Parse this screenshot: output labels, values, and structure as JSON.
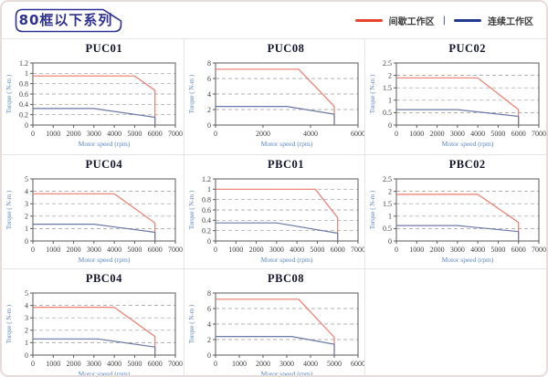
{
  "header": {
    "title": "80框以下系列"
  },
  "legend": {
    "intermittent_label": "间歇工作区",
    "separator": "|",
    "continuous_label": "连续工作区"
  },
  "colors": {
    "legend_intermittent": "#e8432c",
    "legend_continuous": "#1f3a8f",
    "line_intermittent": "#ee7b6d",
    "line_continuous": "#6b79a8",
    "axis_label": "#5b87c5",
    "tick_label": "#3f3f3f",
    "plot_border": "#5a5a5a",
    "gridline": "#999999",
    "title_text": "#15152e",
    "badge": "#2e3192",
    "card_border": "#e8dcda",
    "cell_border": "#e4e4ea"
  },
  "chart_data": [
    {
      "type": "line",
      "title": "PUC01",
      "xlabel": "Motor speed (rpm)",
      "ylabel": "Torque ( N-m )",
      "xlim": [
        0,
        7000
      ],
      "ylim": [
        0,
        1.2
      ],
      "xticks": [
        0,
        1000,
        2000,
        3000,
        4000,
        5000,
        6000,
        7000
      ],
      "yticks": [
        0,
        0.2,
        0.4,
        0.6,
        0.8,
        1,
        1.2
      ],
      "series": [
        {
          "name": "间歇工作区",
          "color": "intermittent",
          "points": [
            [
              0,
              0.95
            ],
            [
              5000,
              0.95
            ],
            [
              6000,
              0.67
            ],
            [
              6000,
              0
            ]
          ]
        },
        {
          "name": "连续工作区",
          "color": "continuous",
          "points": [
            [
              0,
              0.32
            ],
            [
              3000,
              0.32
            ],
            [
              6000,
              0.15
            ],
            [
              6000,
              0
            ]
          ]
        }
      ]
    },
    {
      "type": "line",
      "title": "PUC08",
      "xlabel": "Motor speed (rpm)",
      "ylabel": "Torque ( N-m )",
      "xlim": [
        0,
        6000
      ],
      "ylim": [
        0,
        8
      ],
      "xticks": [
        0,
        2000,
        4000,
        6000
      ],
      "yticks": [
        0,
        2,
        4,
        6,
        8
      ],
      "series": [
        {
          "name": "间歇工作区",
          "color": "intermittent",
          "points": [
            [
              0,
              7.2
            ],
            [
              3500,
              7.2
            ],
            [
              5000,
              2.4
            ],
            [
              5000,
              0
            ]
          ]
        },
        {
          "name": "连续工作区",
          "color": "continuous",
          "points": [
            [
              0,
              2.4
            ],
            [
              3000,
              2.4
            ],
            [
              5000,
              1.4
            ],
            [
              5000,
              0
            ]
          ]
        }
      ]
    },
    {
      "type": "line",
      "title": "PUC02",
      "xlabel": "Motor speed (rpm)",
      "ylabel": "Torque ( N-m )",
      "xlim": [
        0,
        7000
      ],
      "ylim": [
        0,
        2.5
      ],
      "xticks": [
        0,
        1000,
        2000,
        3000,
        4000,
        5000,
        6000,
        7000
      ],
      "yticks": [
        0,
        0.5,
        1,
        1.5,
        2,
        2.5
      ],
      "series": [
        {
          "name": "间歇工作区",
          "color": "intermittent",
          "points": [
            [
              0,
              1.9
            ],
            [
              4000,
              1.9
            ],
            [
              6000,
              0.62
            ],
            [
              6000,
              0
            ]
          ]
        },
        {
          "name": "连续工作区",
          "color": "continuous",
          "points": [
            [
              0,
              0.62
            ],
            [
              3000,
              0.62
            ],
            [
              6000,
              0.35
            ],
            [
              6000,
              0
            ]
          ]
        }
      ]
    },
    {
      "type": "line",
      "title": "PUC04",
      "xlabel": "Motor speed (rpm)",
      "ylabel": "Torque ( N-m )",
      "xlim": [
        0,
        7000
      ],
      "ylim": [
        0,
        5
      ],
      "xticks": [
        0,
        1000,
        2000,
        3000,
        4000,
        5000,
        6000,
        7000
      ],
      "yticks": [
        0,
        1,
        2,
        3,
        4,
        5
      ],
      "series": [
        {
          "name": "间歇工作区",
          "color": "intermittent",
          "points": [
            [
              0,
              3.8
            ],
            [
              4000,
              3.8
            ],
            [
              6000,
              1.45
            ],
            [
              6000,
              0
            ]
          ]
        },
        {
          "name": "连续工作区",
          "color": "continuous",
          "points": [
            [
              0,
              1.35
            ],
            [
              3000,
              1.35
            ],
            [
              6000,
              0.7
            ],
            [
              6000,
              0
            ]
          ]
        }
      ]
    },
    {
      "type": "line",
      "title": "PBC01",
      "xlabel": "Motor speed (rpm)",
      "ylabel": "Torque ( N-m )",
      "xlim": [
        0,
        7000
      ],
      "ylim": [
        0,
        1.2
      ],
      "xticks": [
        0,
        1000,
        2000,
        3000,
        4000,
        5000,
        6000,
        7000
      ],
      "yticks": [
        0,
        0.2,
        0.4,
        0.6,
        0.8,
        1,
        1.2
      ],
      "series": [
        {
          "name": "间歇工作区",
          "color": "intermittent",
          "points": [
            [
              0,
              1.0
            ],
            [
              4900,
              1.0
            ],
            [
              6000,
              0.45
            ],
            [
              6000,
              0
            ]
          ]
        },
        {
          "name": "连续工作区",
          "color": "continuous",
          "points": [
            [
              0,
              0.35
            ],
            [
              3000,
              0.35
            ],
            [
              6000,
              0.15
            ],
            [
              6000,
              0
            ]
          ]
        }
      ]
    },
    {
      "type": "line",
      "title": "PBC02",
      "xlabel": "Motor speed (rpm)",
      "ylabel": "Torque ( N-m )",
      "xlim": [
        0,
        7000
      ],
      "ylim": [
        0,
        2.5
      ],
      "xticks": [
        0,
        1000,
        2000,
        3000,
        4000,
        5000,
        6000,
        7000
      ],
      "yticks": [
        0,
        0.5,
        1,
        1.5,
        2,
        2.5
      ],
      "series": [
        {
          "name": "间歇工作区",
          "color": "intermittent",
          "points": [
            [
              0,
              1.88
            ],
            [
              4000,
              1.88
            ],
            [
              6000,
              0.75
            ],
            [
              6000,
              0
            ]
          ]
        },
        {
          "name": "连续工作区",
          "color": "continuous",
          "points": [
            [
              0,
              0.62
            ],
            [
              3000,
              0.62
            ],
            [
              6000,
              0.38
            ],
            [
              6000,
              0
            ]
          ]
        }
      ]
    },
    {
      "type": "line",
      "title": "PBC04",
      "xlabel": "Motor speed (rpm)",
      "ylabel": "Torque ( N-m )",
      "xlim": [
        0,
        7000
      ],
      "ylim": [
        0,
        5
      ],
      "xticks": [
        0,
        1000,
        2000,
        3000,
        4000,
        5000,
        6000,
        7000
      ],
      "yticks": [
        0,
        1,
        2,
        3,
        4,
        5
      ],
      "series": [
        {
          "name": "间歇工作区",
          "color": "intermittent",
          "points": [
            [
              0,
              3.85
            ],
            [
              4000,
              3.85
            ],
            [
              6000,
              1.5
            ],
            [
              6000,
              0
            ]
          ]
        },
        {
          "name": "连续工作区",
          "color": "continuous",
          "points": [
            [
              0,
              1.3
            ],
            [
              3200,
              1.3
            ],
            [
              6000,
              0.65
            ],
            [
              6000,
              0
            ]
          ]
        }
      ]
    },
    {
      "type": "line",
      "title": "PBC08",
      "xlabel": "Motor speed (rpm)",
      "ylabel": "Torque ( N-m )",
      "xlim": [
        0,
        6000
      ],
      "ylim": [
        0,
        8
      ],
      "xticks": [
        0,
        1000,
        2000,
        3000,
        4000,
        5000,
        6000
      ],
      "yticks": [
        0,
        2,
        4,
        6,
        8
      ],
      "series": [
        {
          "name": "间歇工作区",
          "color": "intermittent",
          "points": [
            [
              0,
              7.2
            ],
            [
              3500,
              7.2
            ],
            [
              5000,
              2.3
            ],
            [
              5000,
              0
            ]
          ]
        },
        {
          "name": "连续工作区",
          "color": "continuous",
          "points": [
            [
              0,
              2.4
            ],
            [
              3200,
              2.4
            ],
            [
              5000,
              1.4
            ],
            [
              5000,
              0
            ]
          ]
        }
      ]
    }
  ]
}
